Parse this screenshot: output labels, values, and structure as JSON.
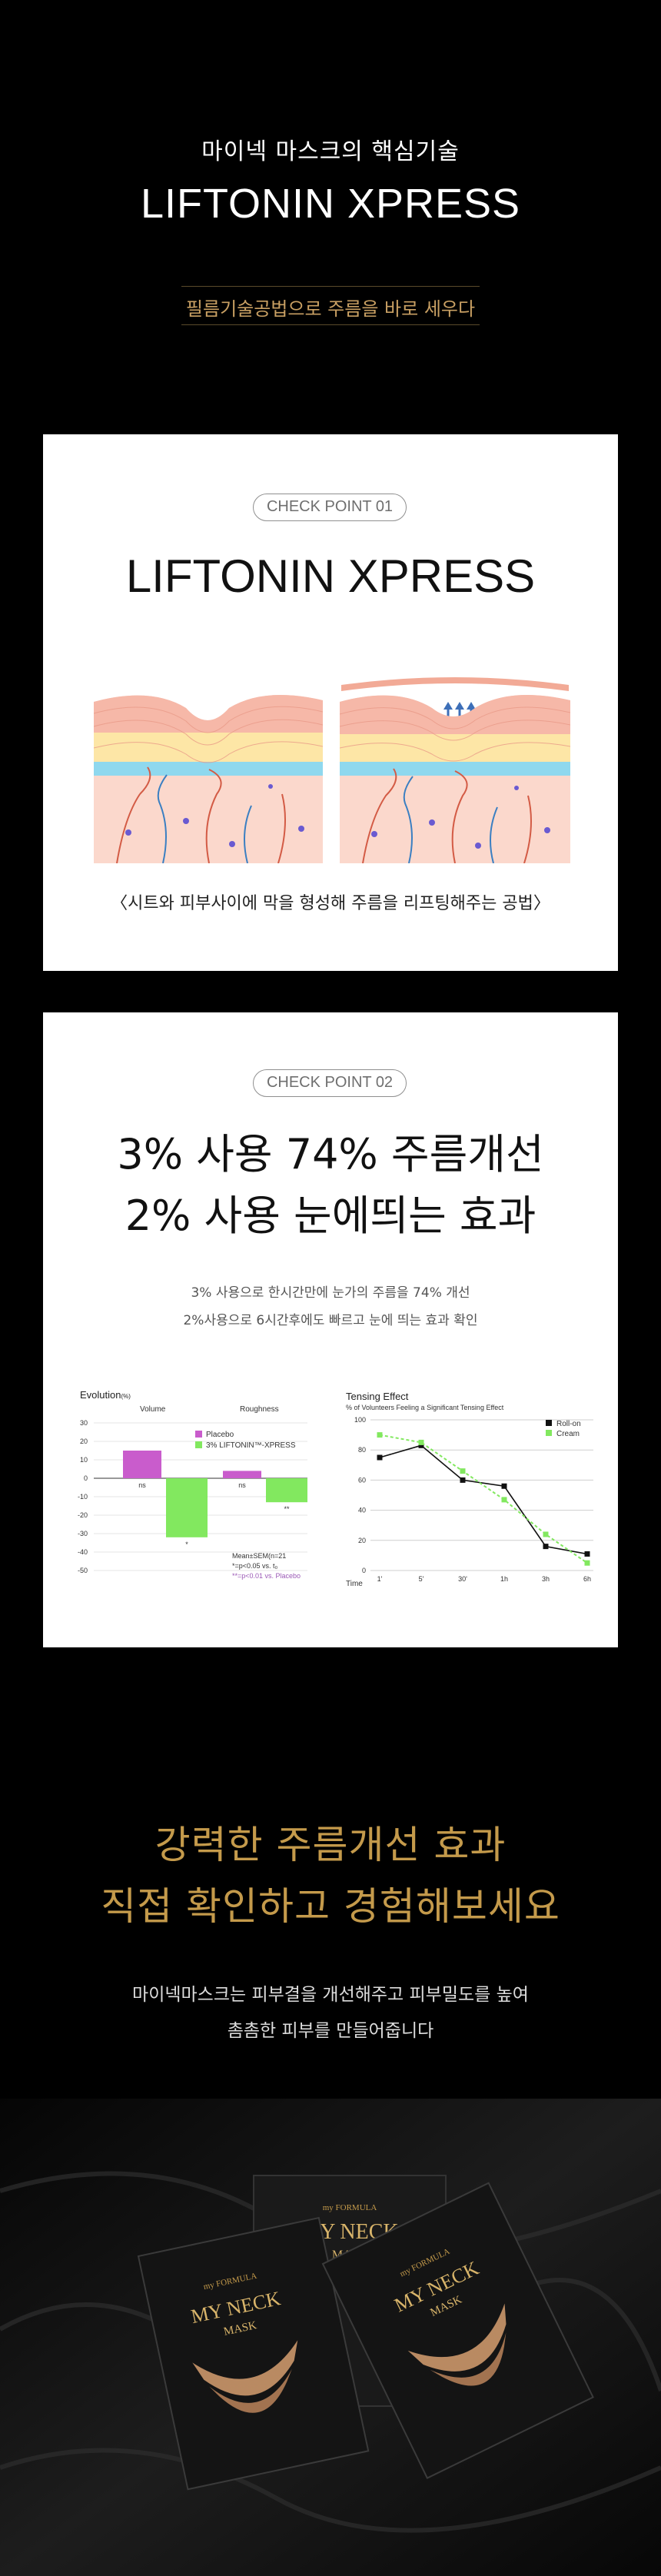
{
  "hero": {
    "subtitle": "마이넥 마스크의 핵심기술",
    "title": "LIFTONIN XPRESS",
    "tagline": "필름기술공법으로 주름을 바로 세우다"
  },
  "card1": {
    "badge": "CHECK POINT 01",
    "title": "LIFTONIN XPRESS",
    "caption": "〈시트와 피부사이에 막을 형성해 주름을 리프팅해주는 공법〉"
  },
  "card2": {
    "badge": "CHECK POINT 02",
    "headline1": "3% 사용 74% 주름개선",
    "headline2": "2% 사용 눈에띄는 효과",
    "desc1": "3% 사용으로 한시간만에 눈가의 주름을 74% 개선",
    "desc2": "2%사용으로 6시간후에도 빠르고 눈에 띄는 효과 확인"
  },
  "chart_data": [
    {
      "type": "bar",
      "title": "Evolution",
      "title_unit": "(%)",
      "categories": [
        "Volume",
        "Roughness"
      ],
      "series": [
        {
          "name": "Placebo",
          "values": [
            15,
            4
          ],
          "color": "#c95ccc"
        },
        {
          "name": "3% LIFTONIN™-XPRESS",
          "values": [
            -32,
            -13
          ],
          "color": "#82e85f"
        }
      ],
      "bar_labels": [
        "ns",
        "*",
        "ns",
        "**"
      ],
      "ylim": [
        -50,
        30
      ],
      "yticks": [
        "30",
        "20",
        "10",
        "0",
        "-10",
        "-20",
        "-30",
        "-40",
        "-50"
      ],
      "notes": [
        "Mean±SEM(n=21",
        "*=p<0.05 vs. t₀",
        "**=p<0.01 vs. Placebo"
      ]
    },
    {
      "type": "line",
      "title": "Tensing Effect",
      "subtitle": "% of Volunteers Feeling a Significant Tensing Effect",
      "xlabel": "Time",
      "x": [
        "1'",
        "5'",
        "30'",
        "1h",
        "3h",
        "6h"
      ],
      "series": [
        {
          "name": "Roll-on",
          "values": [
            75,
            83,
            60,
            56,
            16,
            11
          ],
          "color": "#111111"
        },
        {
          "name": "Cream",
          "values": [
            90,
            85,
            66,
            47,
            24,
            5
          ],
          "color": "#82e85f"
        }
      ],
      "ylim": [
        0,
        100
      ],
      "yticks": [
        "100",
        "80",
        "60",
        "40",
        "20",
        "0"
      ]
    }
  ],
  "bottom": {
    "headline1": "강력한 주름개선 효과",
    "headline2": "직접 확인하고 경험해보세요",
    "desc1": "마이넥마스크는 피부결을 개선해주고 피부밀도를 높여",
    "desc2": "촘촘한 피부를 만들어줍니다"
  },
  "product": {
    "brand": "my FORMULA",
    "name_line1": "MY NECK",
    "name_line2": "MASK"
  },
  "colors": {
    "gold": "#c49a4b",
    "background": "#000000",
    "card": "#ffffff"
  }
}
